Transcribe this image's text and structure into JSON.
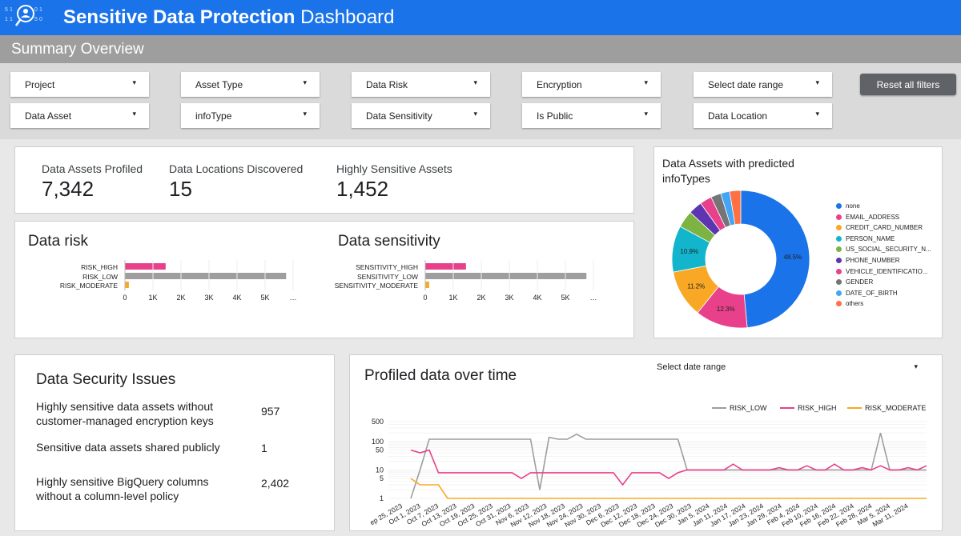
{
  "header": {
    "title_bold": "Sensitive Data Protection",
    "title_light": " Dashboard",
    "logo_icon": "data-protection-logo-icon",
    "logo_digits": [
      "5",
      "1",
      "1",
      "1",
      "0",
      "1",
      "5",
      "0",
      "5"
    ]
  },
  "subheader": {
    "title": "Summary Overview"
  },
  "filters": {
    "row1": [
      "Project",
      "Asset Type",
      "Data Risk",
      "Encryption",
      "Select date range"
    ],
    "row2": [
      "Data Asset",
      "infoType",
      "Data Sensitivity",
      "Is Public",
      "Data Location"
    ],
    "reset_label": "Reset all filters",
    "caret_icon": "▾"
  },
  "kpis": [
    {
      "label": "Data Assets Profiled",
      "value": "7,342"
    },
    {
      "label": "Data Locations Discovered",
      "value": "15"
    },
    {
      "label": "Highly Sensitive Assets",
      "value": "1,452"
    }
  ],
  "risk": {
    "title": "Data risk"
  },
  "sensitivity": {
    "title": "Data sensitivity"
  },
  "pie": {
    "title_line1": "Data Assets with predicted",
    "title_line2": "infoTypes"
  },
  "issues": {
    "title": "Data Security Issues",
    "items": [
      {
        "line1": "Highly sensitive data assets without",
        "line2": "customer-managed encryption keys",
        "value": "957"
      },
      {
        "line1": "Sensitive data assets shared publicly",
        "line2": "",
        "value": "1"
      },
      {
        "line1": "Highly sensitive BigQuery columns",
        "line2": "without a column-level policy",
        "value": "2,402"
      }
    ]
  },
  "timeline": {
    "title": "Profiled data over time",
    "date_filter": "Select date range"
  },
  "colors": {
    "header_blue": "#1a73e8",
    "risk_high": "#e8408a",
    "risk_low": "#9e9e9e",
    "risk_moderate": "#f9a825",
    "pie": [
      "#1a73e8",
      "#e8408a",
      "#f9a825",
      "#12b5cb",
      "#7cb342",
      "#5e35b1",
      "#e8408a",
      "#757575",
      "#42a5f5",
      "#ff7043"
    ]
  },
  "chart_data": [
    {
      "type": "bar",
      "title": "Data risk",
      "categories": [
        "RISK_HIGH",
        "RISK_LOW",
        "RISK_MODERATE"
      ],
      "values": [
        1452,
        5750,
        140
      ],
      "colors": [
        "#e8408a",
        "#9e9e9e",
        "#f9a825"
      ],
      "orientation": "horizontal",
      "xticks": [
        "0",
        "1K",
        "2K",
        "3K",
        "4K",
        "5K",
        "…"
      ],
      "xlim": [
        0,
        6000
      ]
    },
    {
      "type": "bar",
      "title": "Data sensitivity",
      "categories": [
        "SENSITIVITY_HIGH",
        "SENSITIVITY_LOW",
        "SENSITIVITY_MODERATE"
      ],
      "values": [
        1452,
        5750,
        140
      ],
      "colors": [
        "#e8408a",
        "#9e9e9e",
        "#f9a825"
      ],
      "orientation": "horizontal",
      "xticks": [
        "0",
        "1K",
        "2K",
        "3K",
        "4K",
        "5K",
        "…"
      ],
      "xlim": [
        0,
        6000
      ]
    },
    {
      "type": "pie",
      "title": "Data Assets with predicted infoTypes",
      "donut": true,
      "categories": [
        "none",
        "EMAIL_ADDRESS",
        "CREDIT_CARD_NUMBER",
        "PERSON_NAME",
        "US_SOCIAL_SECURITY_N...",
        "PHONE_NUMBER",
        "VEHICLE_IDENTIFICATIO...",
        "GENDER",
        "DATE_OF_BIRTH",
        "others"
      ],
      "values": [
        48.5,
        12.3,
        11.2,
        10.9,
        4.0,
        3.2,
        2.8,
        2.4,
        2.1,
        2.6
      ],
      "slice_labels": [
        "48.5%",
        "12.3%",
        "11.2%",
        "10.9%",
        "",
        "",
        "",
        "",
        "",
        ""
      ],
      "colors": [
        "#1a73e8",
        "#e8408a",
        "#f9a825",
        "#12b5cb",
        "#7cb342",
        "#5e35b1",
        "#e8408a",
        "#757575",
        "#42a5f5",
        "#ff7043"
      ],
      "legend": "right"
    },
    {
      "type": "line",
      "title": "Profiled data over time",
      "yscale": "log",
      "yticks": [
        "1",
        "5",
        "10",
        "50",
        "100",
        "500"
      ],
      "yvals": [
        1,
        5,
        10,
        50,
        100,
        500
      ],
      "ylim": [
        1,
        500
      ],
      "xticks": [
        "ep 25, 2023",
        "Oct 1, 2023",
        "Oct 7, 2023",
        "Oct 13, 2023",
        "Oct 19, 2023",
        "Oct 25, 2023",
        "Oct 31, 2023",
        "Nov 6, 2023",
        "Nov 12, 2023",
        "Nov 18, 2023",
        "Nov 24, 2023",
        "Nov 30, 2023",
        "Dec 6, 2023",
        "Dec 12, 2023",
        "Dec 18, 2023",
        "Dec 24, 2023",
        "Dec 30, 2023",
        "Jan 5, 2024",
        "Jan 11, 2024",
        "Jan 17, 2024",
        "Jan 23, 2024",
        "Jan 29, 2024",
        "Feb 4, 2024",
        "Feb 10, 2024",
        "Feb 16, 2024",
        "Feb 22, 2024",
        "Feb 28, 2024",
        "Mar 5, 2024",
        "Mar 11, 2024"
      ],
      "legend": "top-right",
      "series": [
        {
          "name": "RISK_LOW",
          "color": "#9e9e9e",
          "values": [
            1,
            10,
            120,
            120,
            120,
            120,
            120,
            120,
            120,
            120,
            120,
            120,
            120,
            120,
            2,
            140,
            120,
            120,
            180,
            120,
            120,
            120,
            120,
            120,
            120,
            120,
            120,
            120,
            120,
            120,
            10,
            10,
            10,
            10,
            10,
            10,
            10,
            10,
            10,
            10,
            10,
            10,
            10,
            10,
            10,
            10,
            10,
            10,
            10,
            10,
            10,
            200,
            10,
            10,
            10,
            10,
            10
          ]
        },
        {
          "name": "RISK_HIGH",
          "color": "#e8408a",
          "values": [
            50,
            40,
            50,
            8,
            8,
            8,
            8,
            8,
            8,
            8,
            8,
            8,
            5,
            8,
            8,
            8,
            8,
            8,
            8,
            8,
            8,
            8,
            8,
            3,
            8,
            8,
            8,
            8,
            5,
            8,
            10,
            10,
            10,
            10,
            10,
            16,
            10,
            10,
            10,
            10,
            12,
            10,
            10,
            14,
            10,
            10,
            16,
            10,
            10,
            12,
            10,
            14,
            10,
            10,
            12,
            10,
            14
          ]
        },
        {
          "name": "RISK_MODERATE",
          "color": "#f9a825",
          "values": [
            5,
            3,
            3,
            3,
            1,
            1,
            1,
            1,
            1,
            1,
            1,
            1,
            1,
            1,
            1,
            1,
            1,
            1,
            1,
            1,
            1,
            1,
            1,
            1,
            1,
            1,
            1,
            1,
            1,
            1,
            1,
            1,
            1,
            1,
            1,
            1,
            1,
            1,
            1,
            1,
            1,
            1,
            1,
            1,
            1,
            1,
            1,
            1,
            1,
            1,
            1,
            1,
            1,
            1,
            1,
            1,
            1
          ]
        }
      ]
    }
  ]
}
